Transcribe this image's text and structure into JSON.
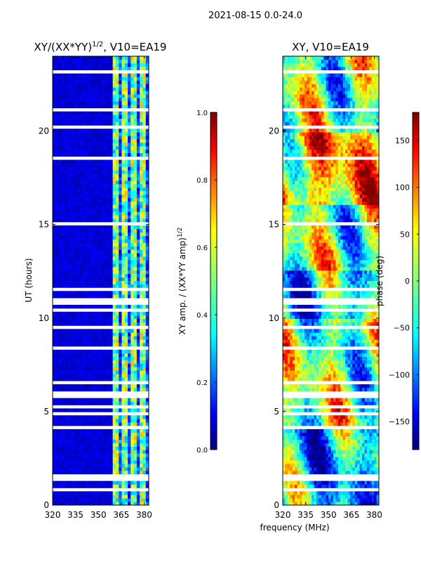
{
  "suptitle": "2021-08-15 0.0-24.0",
  "xlabel_shared": "frequency (MHz)",
  "chart_data": [
    {
      "type": "heatmap",
      "title_base": "XY/(XX*YY)",
      "title_sup": "1/2",
      "title_tail": ", V10=EA19",
      "xlabel": "frequency (MHz)",
      "ylabel": "UT (hours)",
      "xlim": [
        320,
        383
      ],
      "ylim": [
        0,
        24
      ],
      "xticks": [
        320,
        335,
        350,
        365,
        380
      ],
      "yticks": [
        0,
        5,
        10,
        15,
        20
      ],
      "colorbar": {
        "label_base": "XY amp. / (XX*YY amp)",
        "label_sup": "1/2",
        "range": [
          0.0,
          1.0
        ],
        "ticks": [
          "0.0",
          "0.2",
          "0.4",
          "0.6",
          "0.8",
          "1.0"
        ],
        "colormap": "jet"
      }
    },
    {
      "type": "heatmap",
      "title": "XY, V10=EA19",
      "xlabel": "frequency (MHz)",
      "ylabel": "",
      "xlim": [
        320,
        383
      ],
      "ylim": [
        0,
        24
      ],
      "xticks": [
        320,
        335,
        350,
        365,
        380
      ],
      "yticks": [
        0,
        5,
        10,
        15,
        20
      ],
      "colorbar": {
        "label": "phase (deg)",
        "range": [
          -180,
          180
        ],
        "ticks": [
          "−150",
          "−100",
          "−50",
          "0",
          "50",
          "100",
          "150"
        ],
        "colormap": "jet"
      }
    }
  ]
}
